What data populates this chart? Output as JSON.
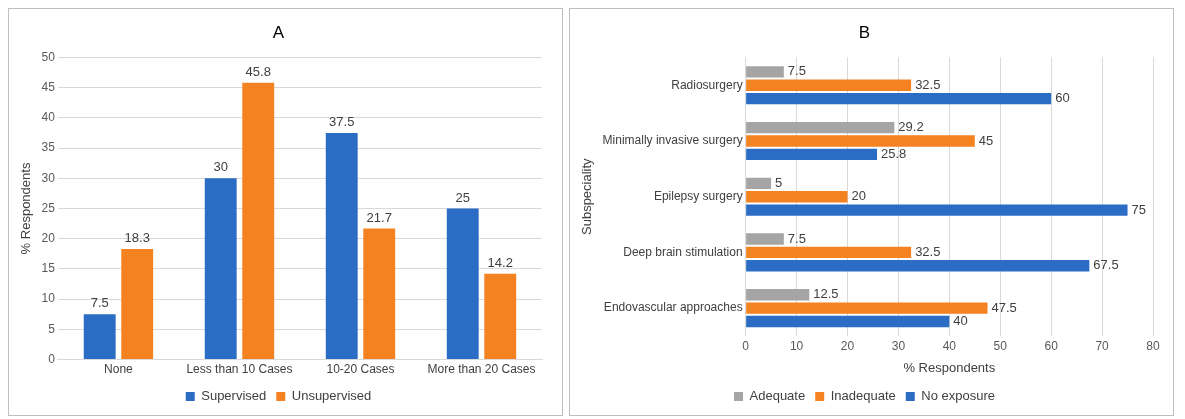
{
  "chart_data": [
    {
      "type": "bar",
      "title": "A",
      "ylabel": "% Respondents",
      "categories": [
        "None",
        "Less than 10 Cases",
        "10-20 Cases",
        "More than 20 Cases"
      ],
      "series": [
        {
          "name": "Supervised",
          "color": "#2b6cc4",
          "values": [
            7.5,
            30,
            37.5,
            25
          ]
        },
        {
          "name": "Unsupervised",
          "color": "#f58220",
          "values": [
            18.3,
            45.8,
            21.7,
            14.2
          ]
        }
      ],
      "ylim": [
        0,
        50
      ],
      "yticks": [
        0,
        5,
        10,
        15,
        20,
        25,
        30,
        35,
        40,
        45,
        50
      ],
      "grid": "y",
      "legend": "bottom",
      "data_labels": true
    },
    {
      "type": "bar",
      "title": "B",
      "orientation": "horizontal",
      "xlabel": "% Respondents",
      "ylabel": "Subspeciality",
      "categories": [
        "Radiosurgery",
        "Minimally invasive surgery",
        "Epilepsy surgery",
        "Deep brain stimulation",
        "Endovascular approaches"
      ],
      "series": [
        {
          "name": "Adequate",
          "color": "#a5a5a5",
          "values": [
            7.5,
            29.2,
            5,
            7.5,
            12.5
          ]
        },
        {
          "name": "Inadequate",
          "color": "#f58220",
          "values": [
            32.5,
            45,
            20,
            32.5,
            47.5
          ]
        },
        {
          "name": "No exposure",
          "color": "#2b6cc4",
          "values": [
            60,
            25.8,
            75,
            67.5,
            40
          ]
        }
      ],
      "xlim": [
        0,
        80
      ],
      "xticks": [
        0,
        10,
        20,
        30,
        40,
        50,
        60,
        70,
        80
      ],
      "grid": "x",
      "legend": "bottom",
      "data_labels": true
    }
  ]
}
